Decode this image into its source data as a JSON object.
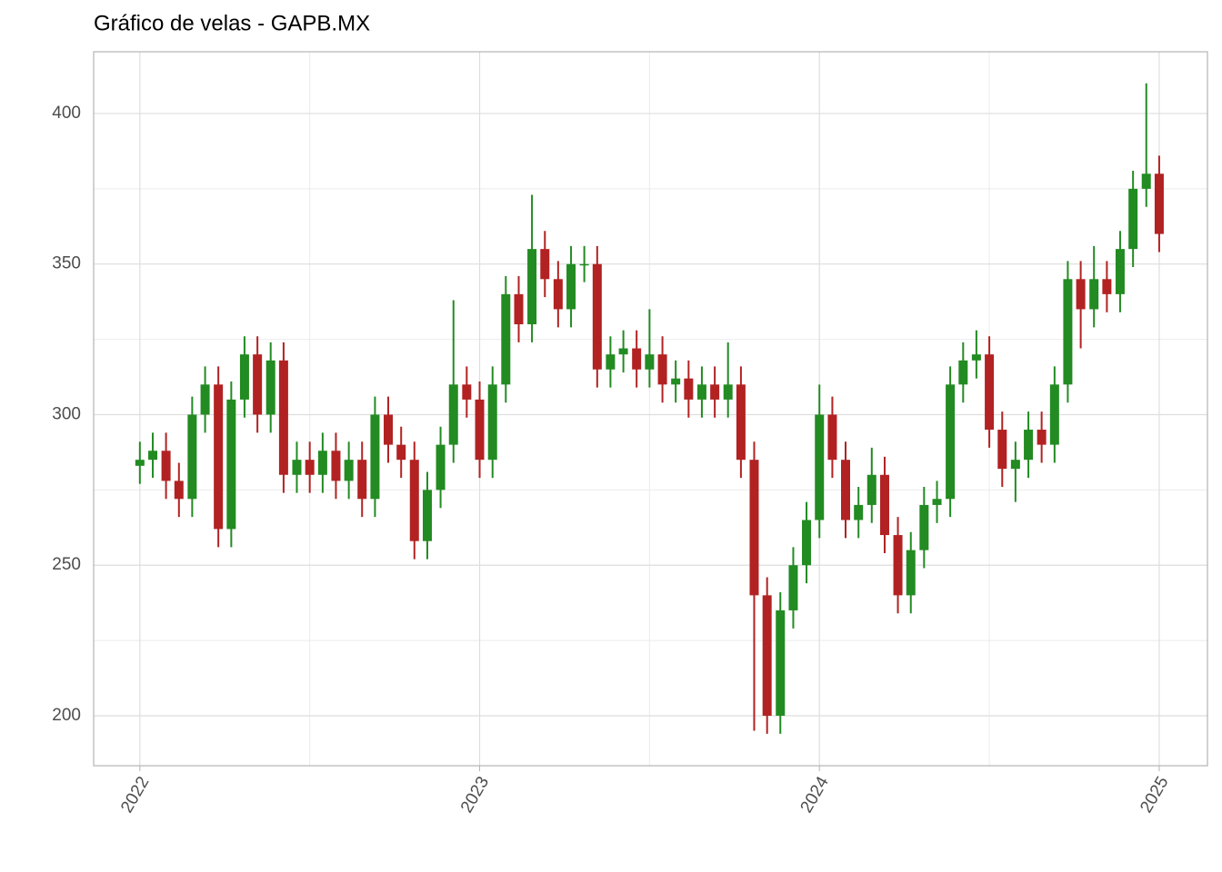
{
  "chart_data": {
    "type": "candlestick",
    "title": "Gráfico de velas - GAPB.MX",
    "x": [
      2022.0,
      2022.038,
      2022.077,
      2022.115,
      2022.154,
      2022.192,
      2022.231,
      2022.269,
      2022.308,
      2022.346,
      2022.385,
      2022.423,
      2022.462,
      2022.5,
      2022.538,
      2022.577,
      2022.615,
      2022.654,
      2022.692,
      2022.731,
      2022.769,
      2022.808,
      2022.846,
      2022.885,
      2022.923,
      2022.962,
      2023.0,
      2023.038,
      2023.077,
      2023.115,
      2023.154,
      2023.192,
      2023.231,
      2023.269,
      2023.308,
      2023.346,
      2023.385,
      2023.423,
      2023.462,
      2023.5,
      2023.538,
      2023.577,
      2023.615,
      2023.654,
      2023.692,
      2023.731,
      2023.769,
      2023.808,
      2023.846,
      2023.885,
      2023.923,
      2023.962,
      2024.0,
      2024.038,
      2024.077,
      2024.115,
      2024.154,
      2024.192,
      2024.231,
      2024.269,
      2024.308,
      2024.346,
      2024.385,
      2024.423,
      2024.462,
      2024.5,
      2024.538,
      2024.577,
      2024.615,
      2024.654,
      2024.692,
      2024.731,
      2024.769,
      2024.808,
      2024.846,
      2024.885,
      2024.923,
      2024.962,
      2025.0
    ],
    "open": [
      283,
      285,
      288,
      278,
      272,
      300,
      310,
      262,
      305,
      320,
      300,
      318,
      280,
      285,
      280,
      288,
      278,
      285,
      272,
      300,
      290,
      285,
      258,
      275,
      290,
      310,
      305,
      285,
      310,
      340,
      330,
      355,
      345,
      335,
      350,
      350,
      315,
      320,
      322,
      315,
      320,
      310,
      312,
      305,
      310,
      305,
      310,
      285,
      240,
      200,
      235,
      250,
      265,
      300,
      285,
      265,
      270,
      280,
      260,
      240,
      255,
      270,
      272,
      310,
      318,
      320,
      295,
      282,
      285,
      295,
      290,
      310,
      345,
      335,
      345,
      340,
      355,
      375,
      380
    ],
    "high": [
      291,
      294,
      294,
      284,
      306,
      316,
      316,
      311,
      326,
      326,
      324,
      324,
      291,
      291,
      294,
      294,
      291,
      291,
      306,
      306,
      296,
      291,
      281,
      296,
      338,
      316,
      311,
      316,
      346,
      346,
      373,
      361,
      351,
      356,
      356,
      356,
      326,
      328,
      328,
      335,
      326,
      318,
      318,
      316,
      316,
      324,
      316,
      291,
      246,
      241,
      256,
      271,
      310,
      306,
      291,
      276,
      289,
      286,
      266,
      261,
      276,
      278,
      316,
      324,
      328,
      326,
      301,
      291,
      301,
      301,
      316,
      351,
      351,
      356,
      351,
      361,
      381,
      410,
      386
    ],
    "low": [
      277,
      279,
      272,
      266,
      266,
      294,
      256,
      256,
      299,
      294,
      294,
      274,
      274,
      274,
      274,
      272,
      272,
      266,
      266,
      284,
      279,
      252,
      252,
      269,
      284,
      299,
      279,
      279,
      304,
      324,
      324,
      339,
      329,
      329,
      344,
      309,
      309,
      314,
      309,
      309,
      304,
      304,
      299,
      299,
      299,
      299,
      279,
      195,
      194,
      194,
      229,
      244,
      259,
      279,
      259,
      259,
      264,
      254,
      234,
      234,
      249,
      264,
      266,
      304,
      312,
      289,
      276,
      271,
      279,
      284,
      284,
      304,
      322,
      329,
      334,
      334,
      349,
      369,
      354
    ],
    "close": [
      285,
      288,
      278,
      272,
      300,
      310,
      262,
      305,
      320,
      300,
      318,
      280,
      285,
      280,
      288,
      278,
      285,
      272,
      300,
      290,
      285,
      258,
      275,
      290,
      310,
      305,
      285,
      310,
      340,
      330,
      355,
      345,
      335,
      350,
      350,
      315,
      320,
      322,
      315,
      320,
      310,
      312,
      305,
      310,
      305,
      310,
      285,
      240,
      200,
      235,
      250,
      265,
      300,
      285,
      265,
      270,
      280,
      260,
      240,
      255,
      270,
      272,
      310,
      318,
      320,
      295,
      282,
      285,
      295,
      290,
      310,
      345,
      335,
      345,
      340,
      355,
      375,
      380,
      360
    ],
    "up_color": "#228b22",
    "down_color": "#b22222",
    "xlim": [
      2021.864,
      2025.142
    ],
    "ylim": [
      183.4,
      420.5
    ],
    "xticks": [
      2022,
      2023,
      2024,
      2025
    ],
    "yticks": [
      200,
      250,
      300,
      350,
      400
    ],
    "grid": true
  }
}
